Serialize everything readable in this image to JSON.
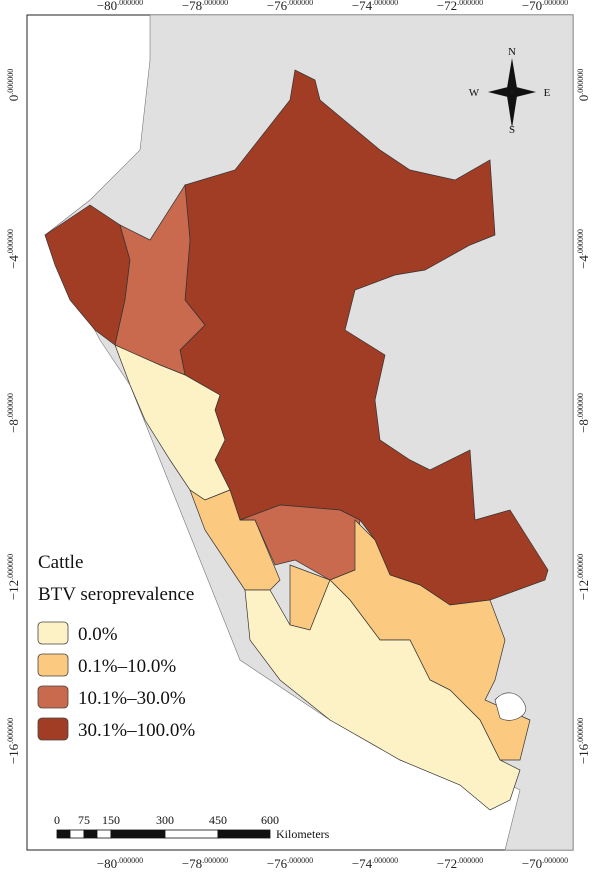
{
  "map": {
    "top_axis_labels": [
      {
        "deg": "−80",
        "dec": ".000000"
      },
      {
        "deg": "−78",
        "dec": ".000000"
      },
      {
        "deg": "−76",
        "dec": ".000000"
      },
      {
        "deg": "−74",
        "dec": ".000000"
      },
      {
        "deg": "−72",
        "dec": ".000000"
      },
      {
        "deg": "−70",
        "dec": ".000000"
      }
    ],
    "bottom_axis_labels": [
      {
        "deg": "−80",
        "dec": ".000000"
      },
      {
        "deg": "−78",
        "dec": ".000000"
      },
      {
        "deg": "−76",
        "dec": ".000000"
      },
      {
        "deg": "−74",
        "dec": ".000000"
      },
      {
        "deg": "−72",
        "dec": ".000000"
      },
      {
        "deg": "−70",
        "dec": ".000000"
      }
    ],
    "left_axis_labels": [
      {
        "deg": "0",
        "dec": ".000000"
      },
      {
        "deg": "−4",
        "dec": ".000000"
      },
      {
        "deg": "−8",
        "dec": ".000000"
      },
      {
        "deg": "−12",
        "dec": ".000000"
      },
      {
        "deg": "−16",
        "dec": ".000000"
      }
    ],
    "right_axis_labels": [
      {
        "deg": "0",
        "dec": ".000000"
      },
      {
        "deg": "−4",
        "dec": ".000000"
      },
      {
        "deg": "−8",
        "dec": ".000000"
      },
      {
        "deg": "−12",
        "dec": ".000000"
      },
      {
        "deg": "−16",
        "dec": ".000000"
      }
    ]
  },
  "legend": {
    "title": [
      "Cattle",
      "BTV seroprevalence"
    ],
    "items": [
      {
        "label": "0.0%",
        "color": "#fdf2c6"
      },
      {
        "label": "0.1%–10.0%",
        "color": "#fbc97f"
      },
      {
        "label": "10.1%–30.0%",
        "color": "#c96a4e"
      },
      {
        "label": "30.1%–100.0%",
        "color": "#a13d24"
      }
    ]
  },
  "compass": {
    "n": "N",
    "e": "E",
    "s": "S",
    "w": "W"
  },
  "scale_bar": {
    "labels": [
      "0",
      "75",
      "150",
      "300",
      "450",
      "600"
    ],
    "unit": "Kilometers"
  }
}
